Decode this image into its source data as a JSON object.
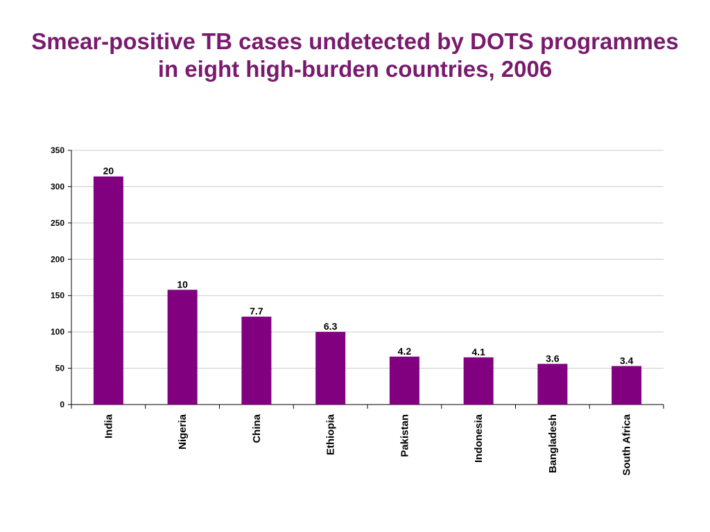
{
  "chart_data": {
    "type": "bar",
    "title_line1": "Smear-positive TB cases undetected by DOTS programmes",
    "title_line2": "in eight high-burden countries, 2006",
    "categories": [
      "India",
      "Nigeria",
      "China",
      "Ethiopia",
      "Pakistan",
      "Indonesia",
      "Bangladesh",
      "South Africa"
    ],
    "values": [
      314,
      158,
      121,
      100,
      66,
      65,
      56,
      53
    ],
    "data_labels": [
      "20",
      "10",
      "7.7",
      "6.3",
      "4.2",
      "4.1",
      "3.6",
      "3.4"
    ],
    "ylim": [
      0,
      350
    ],
    "yticks": [
      0,
      50,
      100,
      150,
      200,
      250,
      300,
      350
    ],
    "grid": true,
    "bar_color": "#800080",
    "title_color": "#7a1a6e"
  }
}
